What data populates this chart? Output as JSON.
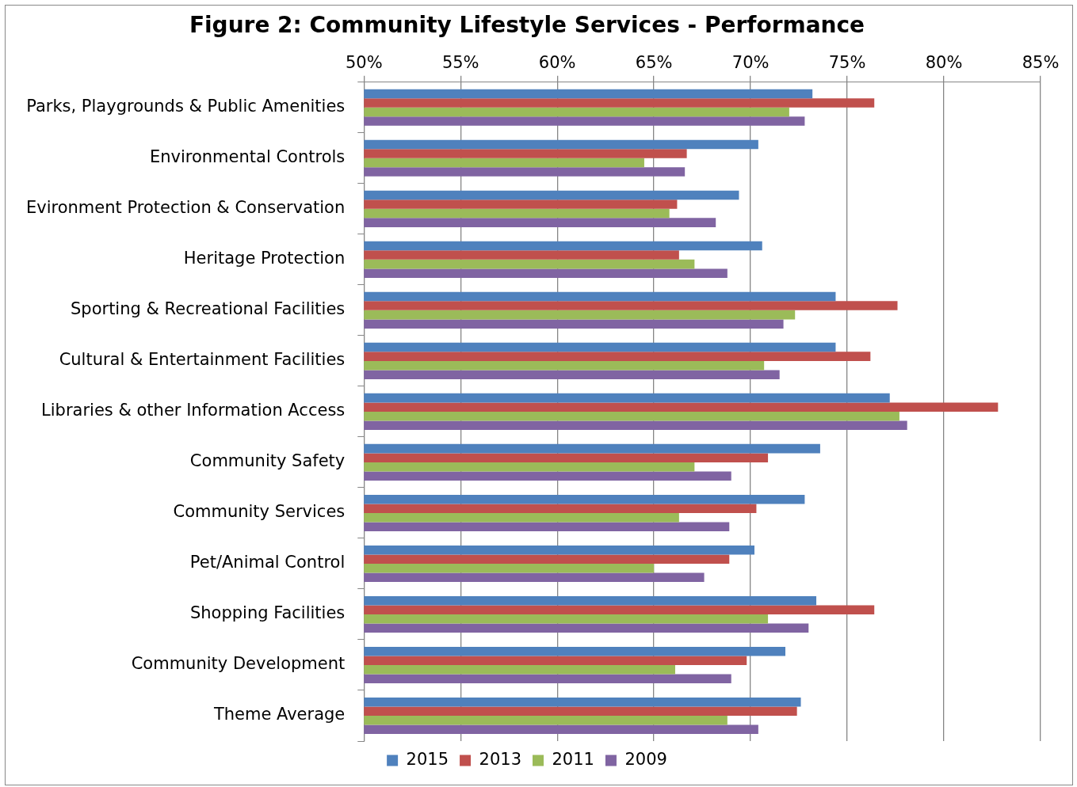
{
  "chart_data": {
    "type": "bar",
    "orientation": "horizontal",
    "title": "Figure 2: Community Lifestyle Services - Performance",
    "categories": [
      "Parks, Playgrounds & Public Amenities",
      "Environmental Controls",
      "Evironment Protection & Conservation",
      "Heritage Protection",
      "Sporting & Recreational Facilities",
      "Cultural & Entertainment Facilities",
      "Libraries & other Information Access",
      "Community Safety",
      "Community Services",
      "Pet/Animal Control",
      "Shopping Facilities",
      "Community Development",
      "Theme Average"
    ],
    "series": [
      {
        "name": "2015",
        "color": "#4f81bd",
        "values": [
          73.2,
          70.4,
          69.4,
          70.6,
          74.4,
          74.4,
          77.2,
          73.6,
          72.8,
          70.2,
          73.4,
          71.8,
          72.6
        ]
      },
      {
        "name": "2013",
        "color": "#c0504d",
        "values": [
          76.4,
          66.7,
          66.2,
          66.3,
          77.6,
          76.2,
          82.8,
          70.9,
          70.3,
          68.9,
          76.4,
          69.8,
          72.4
        ]
      },
      {
        "name": "2011",
        "color": "#9bbb59",
        "values": [
          72.0,
          64.5,
          65.8,
          67.1,
          72.3,
          70.7,
          77.7,
          67.1,
          66.3,
          65.0,
          70.9,
          66.1,
          68.8
        ]
      },
      {
        "name": "2009",
        "color": "#8064a2",
        "values": [
          72.8,
          66.6,
          68.2,
          68.8,
          71.7,
          71.5,
          78.1,
          69.0,
          68.9,
          67.6,
          73.0,
          69.0,
          70.4
        ]
      }
    ],
    "xlim": [
      50,
      85
    ],
    "xticks": [
      {
        "value": 50,
        "label": "50%"
      },
      {
        "value": 55,
        "label": "55%"
      },
      {
        "value": 60,
        "label": "60%"
      },
      {
        "value": 65,
        "label": "65%"
      },
      {
        "value": 70,
        "label": "70%"
      },
      {
        "value": 75,
        "label": "75%"
      },
      {
        "value": 80,
        "label": "80%"
      },
      {
        "value": 85,
        "label": "85%"
      }
    ],
    "grid": "x",
    "legend": "bottom"
  }
}
